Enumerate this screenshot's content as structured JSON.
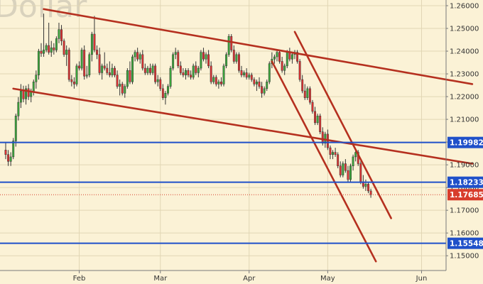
{
  "chart_data": {
    "type": "candlestick",
    "title": "",
    "watermark": "Dollar",
    "xlabel": "",
    "ylabel": "",
    "ylim": [
      1.1435,
      1.2625
    ],
    "y_ticks": [
      1.15,
      1.16,
      1.17,
      1.18,
      1.19,
      1.2,
      1.21,
      1.22,
      1.23,
      1.24,
      1.25,
      1.26
    ],
    "y_tick_labels": [
      "1.15000",
      "1.16000",
      "1.17000",
      "1.18000",
      "1.19000",
      "1.20000",
      "1.21000",
      "1.22000",
      "1.23000",
      "1.24000",
      "1.25000",
      "1.26000"
    ],
    "x_ticks": [
      {
        "label": "Feb",
        "bar": 29
      },
      {
        "label": "Mar",
        "bar": 61
      },
      {
        "label": "Apr",
        "bar": 96
      },
      {
        "label": "May",
        "bar": 127
      },
      {
        "label": "Jun",
        "bar": 164
      }
    ],
    "grid": true,
    "colors": {
      "background": "#fbf2d6",
      "grid": "#e1d6b4",
      "bull": "#3aa83a",
      "bear": "#e03131",
      "channel": "#b5301f",
      "level": "#1f50c9",
      "current_price": "#d83c2c"
    },
    "ohlc": [
      [
        1.1965,
        1.2,
        1.1925,
        1.1945
      ],
      [
        1.1945,
        1.1965,
        1.1895,
        1.1915
      ],
      [
        1.1915,
        1.1955,
        1.1895,
        1.1935
      ],
      [
        1.1935,
        1.2018,
        1.1925,
        1.2005
      ],
      [
        1.2005,
        1.2125,
        1.198,
        1.2115
      ],
      [
        1.2115,
        1.2198,
        1.2095,
        1.2175
      ],
      [
        1.2175,
        1.2255,
        1.215,
        1.2225
      ],
      [
        1.2225,
        1.2248,
        1.2175,
        1.219
      ],
      [
        1.219,
        1.2248,
        1.2165,
        1.2235
      ],
      [
        1.2235,
        1.2255,
        1.2185,
        1.22
      ],
      [
        1.22,
        1.2235,
        1.2175,
        1.222
      ],
      [
        1.222,
        1.2275,
        1.2205,
        1.2265
      ],
      [
        1.2265,
        1.2315,
        1.2235,
        1.2295
      ],
      [
        1.2295,
        1.241,
        1.2275,
        1.24
      ],
      [
        1.24,
        1.2435,
        1.2375,
        1.239
      ],
      [
        1.239,
        1.2565,
        1.2375,
        1.2405
      ],
      [
        1.2405,
        1.2435,
        1.2395,
        1.2425
      ],
      [
        1.2425,
        1.2525,
        1.2385,
        1.2395
      ],
      [
        1.2395,
        1.2445,
        1.2375,
        1.2415
      ],
      [
        1.2415,
        1.2435,
        1.2385,
        1.2405
      ],
      [
        1.2405,
        1.2465,
        1.2395,
        1.2455
      ],
      [
        1.2455,
        1.2525,
        1.2435,
        1.2495
      ],
      [
        1.2495,
        1.2515,
        1.2425,
        1.2445
      ],
      [
        1.2445,
        1.2455,
        1.2375,
        1.2385
      ],
      [
        1.2385,
        1.2425,
        1.2335,
        1.2405
      ],
      [
        1.2405,
        1.2415,
        1.2265,
        1.2275
      ],
      [
        1.2275,
        1.2295,
        1.2245,
        1.2265
      ],
      [
        1.2265,
        1.2285,
        1.2235,
        1.2255
      ],
      [
        1.2255,
        1.2345,
        1.2245,
        1.2335
      ],
      [
        1.2335,
        1.2355,
        1.2315,
        1.2325
      ],
      [
        1.2325,
        1.2415,
        1.2315,
        1.2405
      ],
      [
        1.2405,
        1.2425,
        1.2275,
        1.229
      ],
      [
        1.229,
        1.2335,
        1.228,
        1.2295
      ],
      [
        1.2295,
        1.2395,
        1.2285,
        1.2385
      ],
      [
        1.2385,
        1.2485,
        1.2355,
        1.2475
      ],
      [
        1.2475,
        1.2555,
        1.2395,
        1.2405
      ],
      [
        1.2405,
        1.2425,
        1.2365,
        1.2385
      ],
      [
        1.2385,
        1.2415,
        1.2295,
        1.2305
      ],
      [
        1.2305,
        1.2345,
        1.2275,
        1.2335
      ],
      [
        1.2335,
        1.2395,
        1.2315,
        1.2325
      ],
      [
        1.2325,
        1.2345,
        1.2295,
        1.2305
      ],
      [
        1.2305,
        1.2355,
        1.2285,
        1.2295
      ],
      [
        1.2295,
        1.2345,
        1.2285,
        1.2325
      ],
      [
        1.2325,
        1.2335,
        1.2285,
        1.2295
      ],
      [
        1.2295,
        1.2315,
        1.2235,
        1.2245
      ],
      [
        1.2245,
        1.2275,
        1.2205,
        1.2255
      ],
      [
        1.2255,
        1.2265,
        1.2205,
        1.2215
      ],
      [
        1.2215,
        1.2255,
        1.2195,
        1.2245
      ],
      [
        1.2245,
        1.2325,
        1.2235,
        1.2315
      ],
      [
        1.2315,
        1.2355,
        1.2255,
        1.2265
      ],
      [
        1.2265,
        1.2385,
        1.2255,
        1.2375
      ],
      [
        1.2375,
        1.2405,
        1.2355,
        1.2395
      ],
      [
        1.2395,
        1.2415,
        1.2355,
        1.2365
      ],
      [
        1.2365,
        1.2395,
        1.2345,
        1.2385
      ],
      [
        1.2385,
        1.2405,
        1.2315,
        1.2325
      ],
      [
        1.2325,
        1.2345,
        1.2295,
        1.2305
      ],
      [
        1.2305,
        1.2335,
        1.2295,
        1.2325
      ],
      [
        1.2325,
        1.2345,
        1.2295,
        1.2305
      ],
      [
        1.2305,
        1.2345,
        1.2295,
        1.2335
      ],
      [
        1.2335,
        1.2345,
        1.2255,
        1.2265
      ],
      [
        1.2265,
        1.2295,
        1.2245,
        1.2275
      ],
      [
        1.2275,
        1.2285,
        1.2225,
        1.2235
      ],
      [
        1.2235,
        1.2255,
        1.2185,
        1.2195
      ],
      [
        1.2195,
        1.2225,
        1.2165,
        1.2215
      ],
      [
        1.2215,
        1.2255,
        1.2205,
        1.2245
      ],
      [
        1.2245,
        1.2335,
        1.2235,
        1.2325
      ],
      [
        1.2325,
        1.2395,
        1.2315,
        1.2385
      ],
      [
        1.2385,
        1.2415,
        1.2365,
        1.2395
      ],
      [
        1.2395,
        1.2405,
        1.2325,
        1.2335
      ],
      [
        1.2335,
        1.2355,
        1.2295,
        1.2305
      ],
      [
        1.2305,
        1.2325,
        1.2285,
        1.2295
      ],
      [
        1.2295,
        1.2325,
        1.2275,
        1.2315
      ],
      [
        1.2315,
        1.2325,
        1.2285,
        1.2295
      ],
      [
        1.2295,
        1.2315,
        1.2275,
        1.2285
      ],
      [
        1.2285,
        1.2345,
        1.2275,
        1.2335
      ],
      [
        1.2335,
        1.2355,
        1.2295,
        1.2305
      ],
      [
        1.2305,
        1.2335,
        1.2285,
        1.2325
      ],
      [
        1.2325,
        1.2405,
        1.2315,
        1.2395
      ],
      [
        1.2395,
        1.2415,
        1.2355,
        1.2365
      ],
      [
        1.2365,
        1.2395,
        1.2345,
        1.2385
      ],
      [
        1.2385,
        1.2405,
        1.2325,
        1.2335
      ],
      [
        1.2335,
        1.2355,
        1.2255,
        1.2265
      ],
      [
        1.2265,
        1.2295,
        1.2255,
        1.2285
      ],
      [
        1.2285,
        1.2295,
        1.2245,
        1.2255
      ],
      [
        1.2255,
        1.2275,
        1.2235,
        1.2265
      ],
      [
        1.2265,
        1.2285,
        1.2245,
        1.2255
      ],
      [
        1.2255,
        1.2345,
        1.2245,
        1.2335
      ],
      [
        1.2335,
        1.2395,
        1.2325,
        1.2385
      ],
      [
        1.2385,
        1.2475,
        1.2375,
        1.2465
      ],
      [
        1.2465,
        1.2475,
        1.2395,
        1.2405
      ],
      [
        1.2405,
        1.2425,
        1.2345,
        1.2355
      ],
      [
        1.2355,
        1.2395,
        1.2345,
        1.2385
      ],
      [
        1.2385,
        1.2395,
        1.2305,
        1.2315
      ],
      [
        1.2315,
        1.2335,
        1.2285,
        1.2295
      ],
      [
        1.2295,
        1.2315,
        1.2285,
        1.2305
      ],
      [
        1.2305,
        1.2325,
        1.2275,
        1.2285
      ],
      [
        1.2285,
        1.2305,
        1.2275,
        1.2295
      ],
      [
        1.2295,
        1.2305,
        1.2265,
        1.2275
      ],
      [
        1.2275,
        1.2285,
        1.2245,
        1.2255
      ],
      [
        1.2255,
        1.2275,
        1.2225,
        1.2265
      ],
      [
        1.2265,
        1.2285,
        1.2235,
        1.2245
      ],
      [
        1.2245,
        1.2265,
        1.2195,
        1.2215
      ],
      [
        1.2215,
        1.2245,
        1.2205,
        1.2235
      ],
      [
        1.2235,
        1.2275,
        1.2225,
        1.2265
      ],
      [
        1.2265,
        1.2355,
        1.2255,
        1.2345
      ],
      [
        1.2345,
        1.2395,
        1.2325,
        1.2365
      ],
      [
        1.2365,
        1.2385,
        1.2345,
        1.2375
      ],
      [
        1.2375,
        1.2405,
        1.2355,
        1.2395
      ],
      [
        1.2395,
        1.2405,
        1.2345,
        1.2355
      ],
      [
        1.2355,
        1.2375,
        1.2305,
        1.2315
      ],
      [
        1.2315,
        1.2345,
        1.2295,
        1.2335
      ],
      [
        1.2335,
        1.2405,
        1.2325,
        1.2395
      ],
      [
        1.2395,
        1.2415,
        1.2355,
        1.2365
      ],
      [
        1.2365,
        1.2395,
        1.2345,
        1.2385
      ],
      [
        1.2385,
        1.2405,
        1.2365,
        1.2395
      ],
      [
        1.2395,
        1.2405,
        1.2345,
        1.2355
      ],
      [
        1.2355,
        1.2365,
        1.2265,
        1.2275
      ],
      [
        1.2275,
        1.2295,
        1.2215,
        1.2225
      ],
      [
        1.2225,
        1.2255,
        1.2185,
        1.2195
      ],
      [
        1.2195,
        1.2245,
        1.2185,
        1.2235
      ],
      [
        1.2235,
        1.2245,
        1.2165,
        1.2175
      ],
      [
        1.2175,
        1.2185,
        1.2125,
        1.2135
      ],
      [
        1.2135,
        1.2155,
        1.2075,
        1.2085
      ],
      [
        1.2085,
        1.2125,
        1.2075,
        1.2115
      ],
      [
        1.2115,
        1.2125,
        1.2035,
        1.2045
      ],
      [
        1.2045,
        1.2065,
        1.1985,
        1.1995
      ],
      [
        1.1995,
        1.2045,
        1.1975,
        1.2035
      ],
      [
        1.2035,
        1.2055,
        1.1965,
        1.1975
      ],
      [
        1.1975,
        1.1985,
        1.1925,
        1.1945
      ],
      [
        1.1945,
        1.1965,
        1.1925,
        1.1955
      ],
      [
        1.1955,
        1.1975,
        1.1935,
        1.1945
      ],
      [
        1.1945,
        1.1955,
        1.1885,
        1.1895
      ],
      [
        1.1895,
        1.1915,
        1.1845,
        1.1855
      ],
      [
        1.1855,
        1.1915,
        1.1845,
        1.1905
      ],
      [
        1.1905,
        1.1925,
        1.1865,
        1.1875
      ],
      [
        1.1875,
        1.1895,
        1.1825,
        1.1835
      ],
      [
        1.1835,
        1.1905,
        1.1825,
        1.1895
      ],
      [
        1.1895,
        1.1945,
        1.1875,
        1.1935
      ],
      [
        1.1935,
        1.1965,
        1.1915,
        1.1955
      ],
      [
        1.1955,
        1.1965,
        1.1895,
        1.1905
      ],
      [
        1.1905,
        1.1915,
        1.1815,
        1.1825
      ],
      [
        1.1825,
        1.1855,
        1.1795,
        1.1805
      ],
      [
        1.1805,
        1.1835,
        1.1785,
        1.1815
      ],
      [
        1.1815,
        1.1825,
        1.1775,
        1.1785
      ],
      [
        1.1785,
        1.1795,
        1.1755,
        1.17685
      ]
    ],
    "annotations": {
      "lines": [
        {
          "name": "upper channel top",
          "x1": 15,
          "y1": 1.2585,
          "x2": 184,
          "y2": 1.2255
        },
        {
          "name": "upper channel bottom",
          "x1": 3,
          "y1": 1.2235,
          "x2": 184,
          "y2": 1.1905
        },
        {
          "name": "descending channel left",
          "x1": 105,
          "y1": 1.2355,
          "x2": 146,
          "y2": 1.1475
        },
        {
          "name": "descending channel right",
          "x1": 114,
          "y1": 1.2485,
          "x2": 152,
          "y2": 1.1665
        }
      ],
      "levels": [
        {
          "value": 1.19982,
          "label": "1.19982",
          "style": "solid"
        },
        {
          "value": 1.18233,
          "label": "1.18233",
          "style": "solid"
        },
        {
          "value": 1.15548,
          "label": "1.15548",
          "style": "solid"
        }
      ],
      "current_price": {
        "value": 1.17685,
        "label": "1.17685",
        "style": "dotted"
      }
    }
  }
}
